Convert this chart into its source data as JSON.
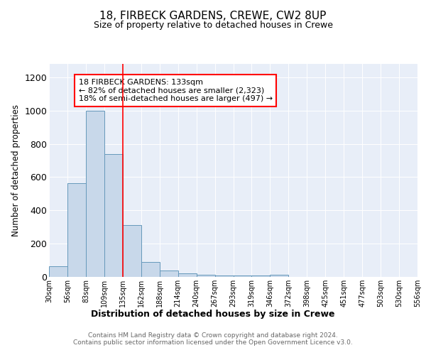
{
  "title1": "18, FIRBECK GARDENS, CREWE, CW2 8UP",
  "title2": "Size of property relative to detached houses in Crewe",
  "xlabel": "Distribution of detached houses by size in Crewe",
  "ylabel": "Number of detached properties",
  "bar_color": "#c8d8ea",
  "bar_edge_color": "#6699bb",
  "bar_heights": [
    65,
    565,
    1000,
    740,
    310,
    90,
    40,
    22,
    12,
    10,
    10,
    10,
    12,
    0,
    0,
    0,
    0,
    0,
    0,
    0
  ],
  "tick_labels": [
    "30sqm",
    "56sqm",
    "83sqm",
    "109sqm",
    "135sqm",
    "162sqm",
    "188sqm",
    "214sqm",
    "240sqm",
    "267sqm",
    "293sqm",
    "319sqm",
    "346sqm",
    "372sqm",
    "398sqm",
    "425sqm",
    "451sqm",
    "477sqm",
    "503sqm",
    "530sqm",
    "556sqm"
  ],
  "n_bins": 20,
  "red_line_bin": 4,
  "annotation_text_line1": "18 FIRBECK GARDENS: 133sqm",
  "annotation_text_line2": "← 82% of detached houses are smaller (2,323)",
  "annotation_text_line3": "18% of semi-detached houses are larger (497) →",
  "footer_text": "Contains HM Land Registry data © Crown copyright and database right 2024.\nContains public sector information licensed under the Open Government Licence v3.0.",
  "ylim": [
    0,
    1280
  ],
  "yticks": [
    0,
    200,
    400,
    600,
    800,
    1000,
    1200
  ],
  "bg_color": "#ffffff",
  "plot_bg_color": "#e8eef8"
}
